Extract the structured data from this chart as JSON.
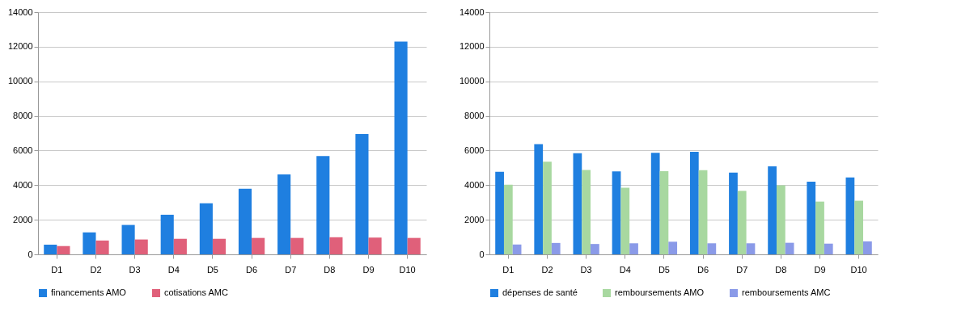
{
  "chart_data": [
    {
      "type": "bar",
      "categories": [
        "D1",
        "D2",
        "D3",
        "D4",
        "D5",
        "D6",
        "D7",
        "D8",
        "D9",
        "D10"
      ],
      "series": [
        {
          "name": "financements AMO",
          "color": "#1f7fe0",
          "values": [
            560,
            1270,
            1700,
            2290,
            2950,
            3790,
            4620,
            5680,
            6950,
            12300
          ]
        },
        {
          "name": "cotisations AMC",
          "color": "#e0607a",
          "values": [
            480,
            800,
            860,
            900,
            900,
            950,
            950,
            990,
            970,
            950
          ]
        }
      ],
      "ylim": [
        0,
        14000
      ],
      "yticks": [
        0,
        2000,
        4000,
        6000,
        8000,
        10000,
        12000,
        14000
      ],
      "grid": "y",
      "legend": "bottom"
    },
    {
      "type": "bar",
      "categories": [
        "D1",
        "D2",
        "D3",
        "D4",
        "D5",
        "D6",
        "D7",
        "D8",
        "D9",
        "D10"
      ],
      "series": [
        {
          "name": "dépenses de santé",
          "color": "#1f7fe0",
          "values": [
            4770,
            6370,
            5840,
            4790,
            5870,
            5930,
            4720,
            5090,
            4200,
            4450
          ]
        },
        {
          "name": "remboursements AMO",
          "color": "#a8d8a0",
          "values": [
            4030,
            5360,
            4880,
            3850,
            4810,
            4860,
            3670,
            3990,
            3050,
            3100
          ]
        },
        {
          "name": "remboursements AMC",
          "color": "#8a9ae8",
          "values": [
            570,
            660,
            600,
            640,
            730,
            640,
            640,
            670,
            620,
            750
          ]
        }
      ],
      "ylim": [
        0,
        14000
      ],
      "yticks": [
        0,
        2000,
        4000,
        6000,
        8000,
        10000,
        12000,
        14000
      ],
      "grid": "y",
      "legend": "bottom"
    }
  ]
}
